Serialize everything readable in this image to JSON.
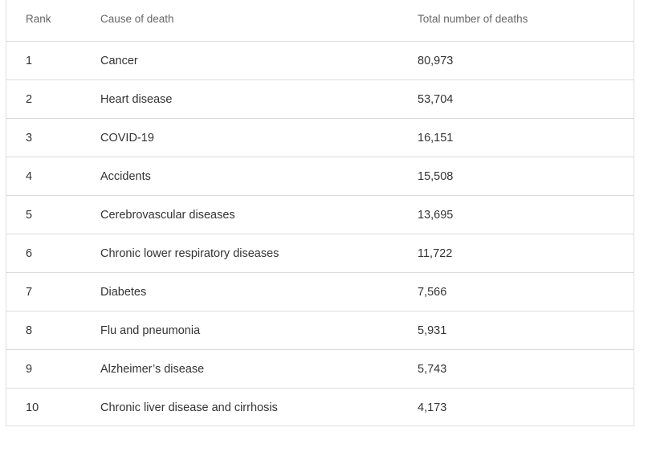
{
  "table": {
    "headers": {
      "rank": "Rank",
      "cause": "Cause of death",
      "total": "Total number of deaths"
    },
    "rows": [
      {
        "rank": "1",
        "cause": "Cancer",
        "total": "80,973"
      },
      {
        "rank": "2",
        "cause": "Heart disease",
        "total": "53,704"
      },
      {
        "rank": "3",
        "cause": "COVID-19",
        "total": "16,151"
      },
      {
        "rank": "4",
        "cause": "Accidents",
        "total": "15,508"
      },
      {
        "rank": "5",
        "cause": "Cerebrovascular diseases",
        "total": "13,695"
      },
      {
        "rank": "6",
        "cause": "Chronic lower respiratory diseases",
        "total": "11,722"
      },
      {
        "rank": "7",
        "cause": "Diabetes",
        "total": "7,566"
      },
      {
        "rank": "8",
        "cause": "Flu and pneumonia",
        "total": "5,931"
      },
      {
        "rank": "9",
        "cause": "Alzheimer’s disease",
        "total": "5,743"
      },
      {
        "rank": "10",
        "cause": "Chronic liver disease and cirrhosis",
        "total": "4,173"
      }
    ]
  }
}
